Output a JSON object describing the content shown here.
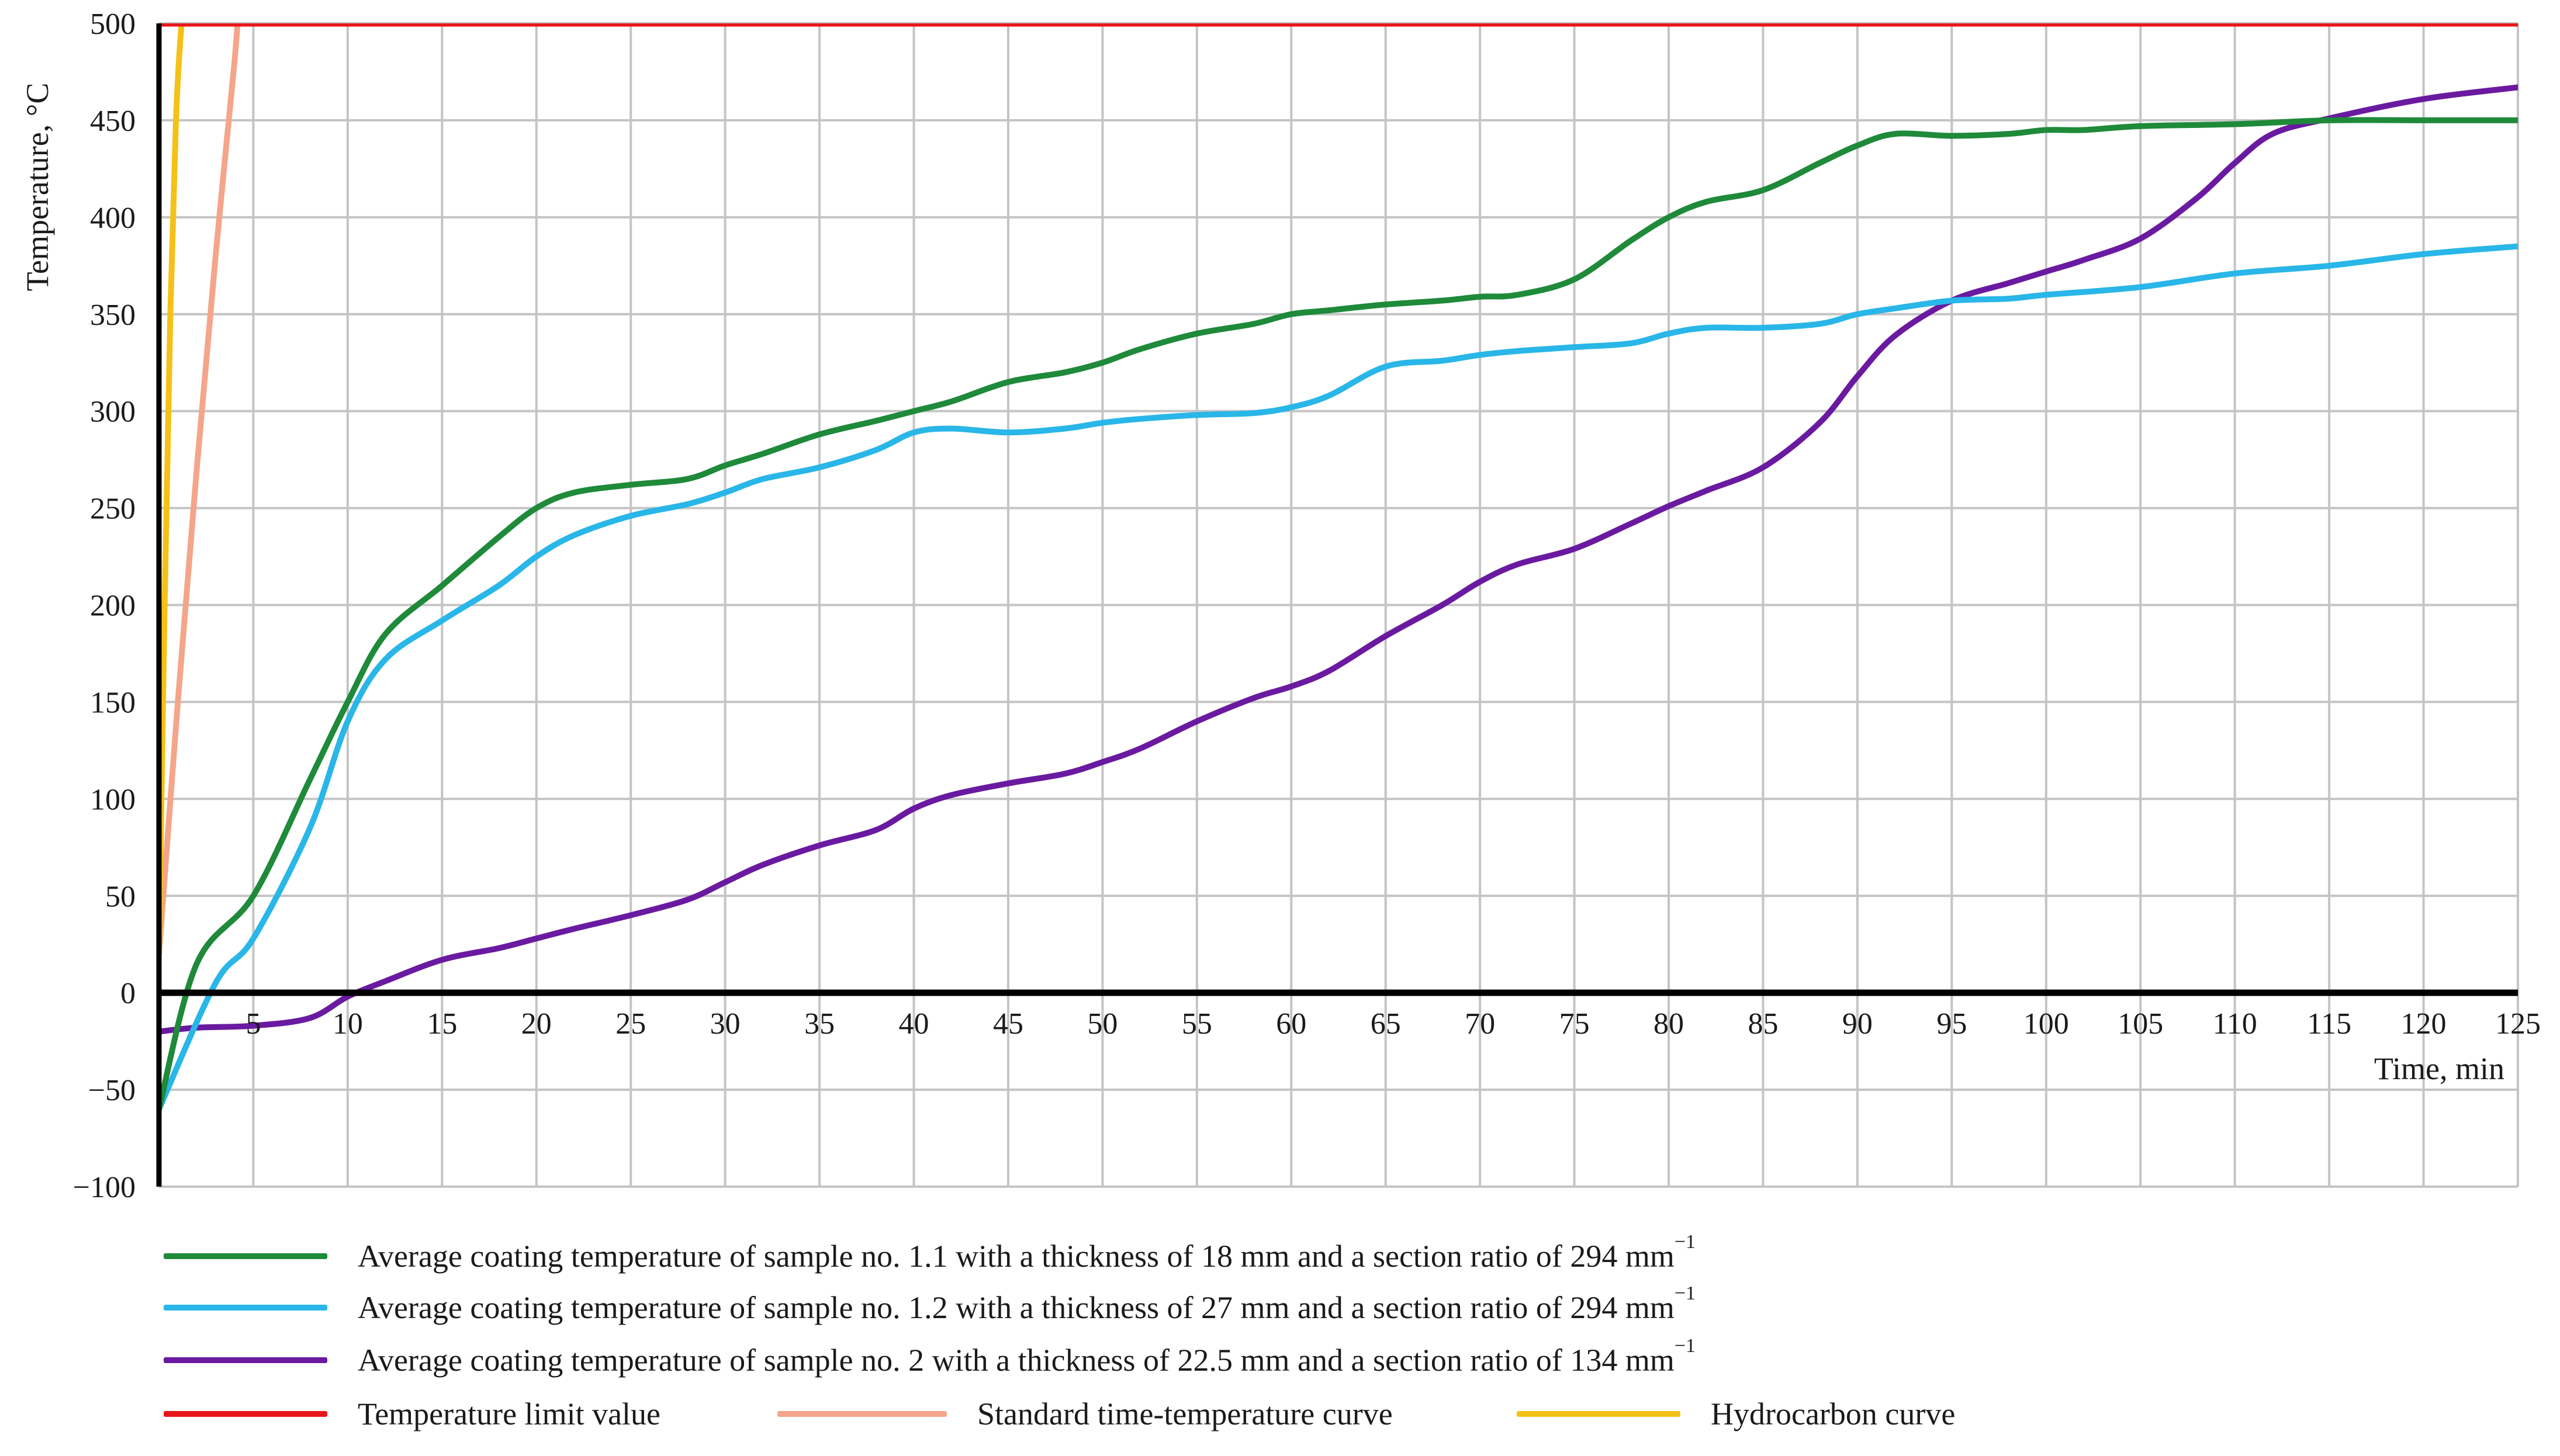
{
  "chart_data": {
    "type": "line",
    "xlabel": "Time, min",
    "ylabel": "Temperature, °C",
    "xlim": [
      0,
      125
    ],
    "ylim": [
      -100,
      500
    ],
    "x_ticks": [
      5,
      10,
      15,
      20,
      25,
      30,
      35,
      40,
      45,
      50,
      55,
      60,
      65,
      70,
      75,
      80,
      85,
      90,
      95,
      100,
      105,
      110,
      115,
      120,
      125
    ],
    "y_ticks": [
      500,
      450,
      400,
      350,
      300,
      250,
      200,
      150,
      100,
      50,
      0,
      -50,
      -100
    ],
    "y_tick_labels": [
      "500",
      "450",
      "400",
      "350",
      "300",
      "250",
      "200",
      "150",
      "100",
      "50",
      "0",
      "−50",
      "−100"
    ],
    "grid": true,
    "legend_position": "bottom",
    "series": [
      {
        "name": "Average coating temperature of sample no. 1.1 with a thickness of 18 mm and a section ratio of 294 mm",
        "sup": "−1",
        "color": "#1e8a3a",
        "x": [
          0,
          2,
          5,
          8,
          10,
          12,
          15,
          18,
          20,
          22,
          25,
          28,
          30,
          32,
          35,
          38,
          40,
          42,
          45,
          48,
          50,
          52,
          55,
          58,
          60,
          62,
          65,
          68,
          70,
          72,
          75,
          78,
          80,
          82,
          85,
          88,
          90,
          92,
          95,
          98,
          100,
          102,
          105,
          110,
          115,
          120,
          125
        ],
        "y": [
          -60,
          15,
          50,
          110,
          150,
          185,
          210,
          235,
          250,
          258,
          262,
          265,
          272,
          278,
          288,
          295,
          300,
          305,
          315,
          320,
          325,
          332,
          340,
          345,
          350,
          352,
          355,
          357,
          359,
          360,
          368,
          388,
          400,
          408,
          414,
          428,
          437,
          443,
          442,
          443,
          445,
          445,
          447,
          448,
          450,
          450,
          450
        ]
      },
      {
        "name": "Average coating temperature of sample no. 1.2 with a thickness of 27 mm and a section ratio of 294 mm",
        "sup": "−1",
        "color": "#29b6e8",
        "x": [
          0,
          3,
          5,
          8,
          10,
          12,
          15,
          18,
          20,
          22,
          25,
          28,
          30,
          32,
          35,
          38,
          40,
          42,
          45,
          48,
          50,
          52,
          55,
          58,
          60,
          62,
          65,
          68,
          70,
          72,
          75,
          78,
          80,
          82,
          85,
          88,
          90,
          92,
          95,
          98,
          100,
          105,
          110,
          115,
          120,
          125
        ],
        "y": [
          -60,
          5,
          28,
          85,
          140,
          172,
          192,
          210,
          225,
          236,
          246,
          252,
          258,
          265,
          271,
          280,
          289,
          291,
          289,
          291,
          294,
          296,
          298,
          299,
          302,
          308,
          323,
          326,
          329,
          331,
          333,
          335,
          340,
          343,
          343,
          345,
          350,
          353,
          357,
          358,
          360,
          364,
          371,
          375,
          381,
          385
        ]
      },
      {
        "name": "Average coating temperature of sample no. 2 with a thickness of 22.5 mm and a section ratio of 134 mm",
        "sup": "−1",
        "color": "#6a1aa0",
        "x": [
          0,
          2,
          5,
          8,
          10,
          12,
          15,
          18,
          20,
          22,
          25,
          28,
          30,
          32,
          35,
          38,
          40,
          42,
          45,
          48,
          50,
          52,
          55,
          58,
          60,
          62,
          65,
          68,
          70,
          72,
          75,
          78,
          80,
          82,
          85,
          88,
          90,
          92,
          95,
          98,
          100,
          102,
          105,
          108,
          110,
          112,
          115,
          120,
          125
        ],
        "y": [
          -20,
          -18,
          -17,
          -13,
          -2,
          6,
          17,
          23,
          28,
          33,
          40,
          48,
          57,
          66,
          76,
          84,
          95,
          102,
          108,
          113,
          119,
          126,
          140,
          152,
          158,
          166,
          184,
          200,
          212,
          221,
          229,
          242,
          251,
          259,
          271,
          294,
          318,
          339,
          357,
          366,
          372,
          378,
          389,
          410,
          428,
          443,
          451,
          461,
          467
        ]
      },
      {
        "name": "Temperature limit value",
        "color": "#e8181a",
        "x": [
          0,
          125
        ],
        "y": [
          500,
          500
        ]
      },
      {
        "name": "Standard time-temperature curve",
        "color": "#f4a58a",
        "x": [
          0,
          1,
          2,
          3,
          4,
          4.3
        ],
        "y": [
          20,
          150,
          270,
          380,
          480,
          520
        ]
      },
      {
        "name": "Hydrocarbon curve",
        "color": "#f5c116",
        "x": [
          0,
          0.3,
          0.6,
          0.9,
          1.2,
          1.5
        ],
        "y": [
          20,
          200,
          350,
          450,
          500,
          520
        ]
      }
    ]
  }
}
